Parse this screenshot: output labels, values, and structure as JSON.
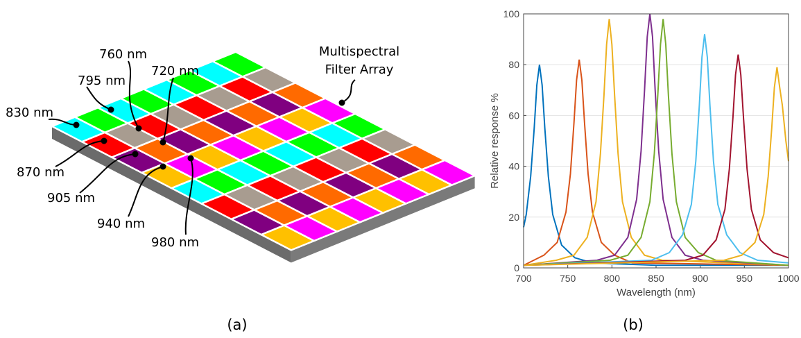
{
  "diagram": {
    "caption": "(a)",
    "title_lines": [
      "Multispectral",
      "Filter Array"
    ],
    "labels": [
      "760 nm",
      "720 nm",
      "795 nm",
      "830 nm",
      "870 nm",
      "905 nm",
      "940 nm",
      "980 nm"
    ]
  },
  "chart_data": {
    "type": "line",
    "caption": "(b)",
    "xlabel": "Wavelength (nm)",
    "ylabel": "Relative response %",
    "xlim": [
      700,
      1000
    ],
    "xticks": [
      700,
      750,
      800,
      850,
      900,
      950,
      1000
    ],
    "ylim": [
      0,
      100
    ],
    "yticks": [
      0,
      20,
      40,
      60,
      80,
      100
    ],
    "grid": true,
    "series": [
      {
        "color": "#0072BD",
        "x": [
          700,
          703,
          708,
          712,
          715,
          718,
          721,
          724,
          728,
          733,
          743,
          758,
          778,
          850,
          1000
        ],
        "values": [
          16,
          21,
          36,
          55,
          72,
          80,
          72,
          55,
          36,
          21,
          9,
          4,
          2,
          1,
          1
        ]
      },
      {
        "color": "#D95319",
        "x": [
          700,
          723,
          738,
          748,
          753,
          757,
          760,
          763,
          766,
          769,
          773,
          778,
          788,
          803,
          823,
          1000
        ],
        "values": [
          1,
          5,
          10,
          22,
          37,
          57,
          74,
          82,
          74,
          57,
          37,
          22,
          10,
          5,
          2,
          1
        ]
      },
      {
        "color": "#EDB120",
        "x": [
          700,
          737,
          757,
          772,
          782,
          787,
          791,
          794,
          797,
          800,
          803,
          807,
          812,
          822,
          837,
          857,
          1000
        ],
        "values": [
          1,
          3,
          5,
          12,
          26,
          45,
          68,
          88,
          98,
          88,
          68,
          45,
          26,
          12,
          5,
          3,
          1
        ]
      },
      {
        "color": "#7E2F8E",
        "x": [
          700,
          783,
          803,
          818,
          828,
          833,
          837,
          840,
          843,
          846,
          849,
          853,
          858,
          868,
          883,
          903,
          1000
        ],
        "values": [
          1,
          3,
          5,
          12,
          27,
          46,
          70,
          91,
          100,
          91,
          70,
          46,
          27,
          12,
          5,
          3,
          1
        ]
      },
      {
        "color": "#77AC30",
        "x": [
          700,
          798,
          818,
          833,
          843,
          848,
          852,
          855,
          858,
          861,
          864,
          868,
          873,
          883,
          898,
          918,
          1000
        ],
        "values": [
          1,
          3,
          5,
          12,
          26,
          45,
          68,
          88,
          98,
          88,
          68,
          45,
          26,
          12,
          6,
          3,
          1
        ]
      },
      {
        "color": "#4DBEEE",
        "x": [
          700,
          845,
          865,
          880,
          890,
          895,
          899,
          902,
          905,
          908,
          911,
          915,
          920,
          930,
          945,
          965,
          1000
        ],
        "values": [
          1,
          3,
          6,
          13,
          25,
          42,
          64,
          83,
          92,
          83,
          64,
          42,
          25,
          13,
          6,
          3,
          2
        ]
      },
      {
        "color": "#A2142F",
        "x": [
          700,
          883,
          903,
          918,
          928,
          933,
          937,
          940,
          943,
          946,
          949,
          953,
          958,
          968,
          983,
          1000
        ],
        "values": [
          1,
          3,
          5,
          11,
          23,
          39,
          59,
          76,
          84,
          76,
          59,
          39,
          23,
          11,
          6,
          4
        ]
      },
      {
        "color": "#EDB120",
        "x": [
          700,
          927,
          947,
          962,
          972,
          977,
          981,
          984,
          987,
          990,
          993,
          997,
          1000
        ],
        "values": [
          1,
          3,
          5,
          10,
          21,
          36,
          55,
          71,
          79,
          71,
          64,
          50,
          42
        ]
      }
    ]
  }
}
